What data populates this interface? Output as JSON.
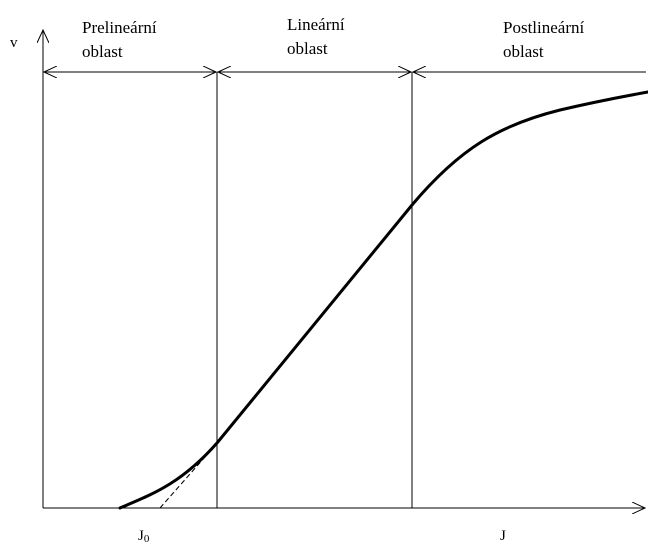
{
  "regions": [
    {
      "line1": "Prelineární",
      "line2": "oblast"
    },
    {
      "line1": "Lineární",
      "line2": "oblast"
    },
    {
      "line1": "Postlineární",
      "line2": "oblast"
    }
  ],
  "axes": {
    "y_label": "v",
    "x_label": "J",
    "x0_label_main": "J",
    "x0_label_sub": "0"
  }
}
